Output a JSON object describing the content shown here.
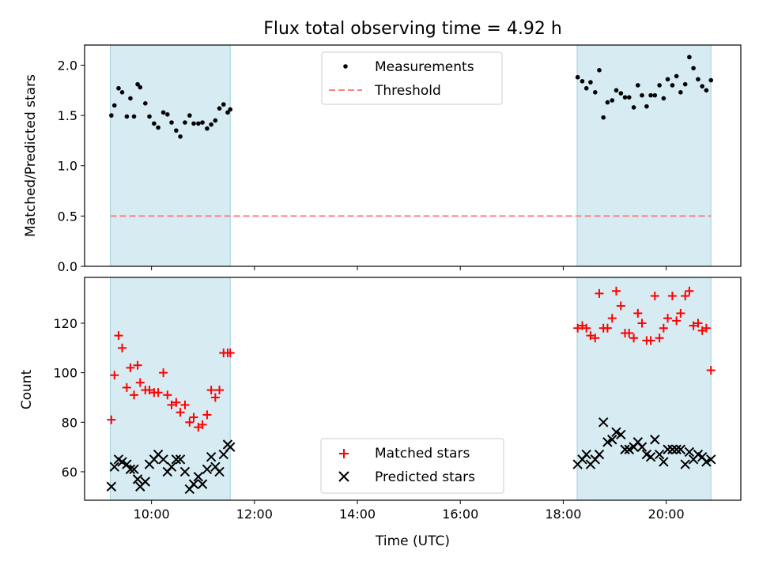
{
  "chart_data": [
    {
      "type": "scatter",
      "title": "Flux total observing time = 4.92 h",
      "xlabel": "",
      "ylabel": "Matched/Predicted stars",
      "xlim": [
        8.7,
        21.45
      ],
      "ylim": [
        0.0,
        2.2
      ],
      "yticks": [
        0.0,
        0.5,
        1.0,
        1.5,
        2.0
      ],
      "ytick_labels": [
        "0.0",
        "0.5",
        "1.0",
        "1.5",
        "2.0"
      ],
      "xticks": [
        10,
        12,
        14,
        16,
        18,
        20
      ],
      "shaded_intervals": [
        [
          9.2,
          11.53
        ],
        [
          18.27,
          20.87
        ]
      ],
      "threshold": 0.5,
      "series": [
        {
          "name": "Measurements",
          "color": "#000000",
          "x": [
            9.22,
            9.28,
            9.36,
            9.43,
            9.52,
            9.59,
            9.66,
            9.73,
            9.78,
            9.88,
            9.96,
            10.05,
            10.13,
            10.23,
            10.31,
            10.39,
            10.48,
            10.56,
            10.65,
            10.74,
            10.82,
            10.91,
            10.99,
            11.08,
            11.16,
            11.24,
            11.32,
            11.4,
            11.48,
            11.53,
            18.28,
            18.37,
            18.45,
            18.53,
            18.62,
            18.7,
            18.78,
            18.86,
            18.95,
            19.03,
            19.12,
            19.2,
            19.28,
            19.37,
            19.45,
            19.53,
            19.62,
            19.7,
            19.78,
            19.87,
            19.95,
            20.03,
            20.12,
            20.2,
            20.28,
            20.37,
            20.45,
            20.53,
            20.62,
            20.7,
            20.78,
            20.87
          ],
          "y": [
            1.5,
            1.6,
            1.77,
            1.73,
            1.49,
            1.67,
            1.49,
            1.81,
            1.78,
            1.62,
            1.49,
            1.42,
            1.38,
            1.53,
            1.51,
            1.43,
            1.35,
            1.29,
            1.43,
            1.5,
            1.42,
            1.42,
            1.43,
            1.37,
            1.41,
            1.45,
            1.57,
            1.61,
            1.53,
            1.56,
            1.88,
            1.84,
            1.77,
            1.83,
            1.73,
            1.95,
            1.48,
            1.63,
            1.65,
            1.75,
            1.72,
            1.68,
            1.68,
            1.58,
            1.8,
            1.7,
            1.59,
            1.7,
            1.7,
            1.8,
            1.67,
            1.86,
            1.8,
            1.89,
            1.73,
            1.81,
            2.08,
            1.97,
            1.86,
            1.79,
            1.75,
            1.85
          ]
        },
        {
          "name": "Threshold",
          "color": "#ff7f7f",
          "x": [
            9.2,
            20.87
          ],
          "y": [
            0.5,
            0.5
          ]
        }
      ],
      "legend": {
        "location": "upper center",
        "entries": [
          "Measurements",
          "Threshold"
        ]
      }
    },
    {
      "type": "scatter",
      "title": "",
      "xlabel": "Time (UTC)",
      "ylabel": "Count",
      "xlim": [
        8.7,
        21.45
      ],
      "ylim": [
        48.5,
        138.5
      ],
      "yticks": [
        60,
        80,
        100,
        120
      ],
      "ytick_labels": [
        "60",
        "80",
        "100",
        "120"
      ],
      "xticks": [
        10,
        12,
        14,
        16,
        18,
        20
      ],
      "xtick_labels": [
        "10:00",
        "12:00",
        "14:00",
        "16:00",
        "18:00",
        "20:00"
      ],
      "shaded_intervals": [
        [
          9.2,
          11.53
        ],
        [
          18.27,
          20.87
        ]
      ],
      "series": [
        {
          "name": "Matched stars",
          "color": "#ff0000",
          "marker": "+",
          "x": [
            9.22,
            9.28,
            9.36,
            9.43,
            9.52,
            9.59,
            9.66,
            9.73,
            9.78,
            9.88,
            9.96,
            10.05,
            10.13,
            10.23,
            10.31,
            10.39,
            10.48,
            10.56,
            10.65,
            10.74,
            10.82,
            10.91,
            10.99,
            11.08,
            11.16,
            11.24,
            11.32,
            11.4,
            11.48,
            11.53,
            18.28,
            18.37,
            18.45,
            18.53,
            18.62,
            18.7,
            18.78,
            18.86,
            18.95,
            19.03,
            19.12,
            19.2,
            19.28,
            19.37,
            19.45,
            19.53,
            19.62,
            19.7,
            19.78,
            19.87,
            19.95,
            20.03,
            20.12,
            20.2,
            20.28,
            20.37,
            20.45,
            20.53,
            20.62,
            20.7,
            20.78,
            20.87
          ],
          "y": [
            81,
            99,
            115,
            110,
            94,
            102,
            91,
            103,
            96,
            93,
            93,
            92,
            92,
            100,
            91,
            87,
            88,
            84,
            87,
            80,
            82,
            78,
            79,
            83,
            93,
            90,
            93,
            108,
            108,
            108,
            118,
            119,
            118,
            115,
            114,
            132,
            118,
            118,
            122,
            133,
            127,
            116,
            116,
            114,
            124,
            120,
            113,
            113,
            131,
            114,
            118,
            122,
            131,
            121,
            124,
            131,
            133,
            119,
            120,
            117,
            118,
            101
          ]
        },
        {
          "name": "Predicted stars",
          "color": "#000000",
          "marker": "x",
          "x": [
            9.22,
            9.28,
            9.36,
            9.43,
            9.52,
            9.59,
            9.66,
            9.73,
            9.78,
            9.88,
            9.96,
            10.05,
            10.13,
            10.23,
            10.31,
            10.39,
            10.48,
            10.56,
            10.65,
            10.74,
            10.82,
            10.91,
            10.99,
            11.08,
            11.16,
            11.24,
            11.32,
            11.4,
            11.48,
            11.53,
            18.28,
            18.37,
            18.45,
            18.53,
            18.62,
            18.7,
            18.78,
            18.86,
            18.95,
            19.03,
            19.12,
            19.2,
            19.28,
            19.37,
            19.45,
            19.53,
            19.62,
            19.7,
            19.78,
            19.87,
            19.95,
            20.03,
            20.12,
            20.2,
            20.28,
            20.37,
            20.45,
            20.53,
            20.62,
            20.7,
            20.78,
            20.87
          ],
          "y": [
            54,
            62,
            65,
            64,
            63,
            61,
            61,
            57,
            54,
            56,
            63,
            65,
            67,
            65,
            60,
            62,
            65,
            65,
            60,
            53,
            55,
            58,
            55,
            61,
            66,
            62,
            60,
            67,
            71,
            70,
            63,
            65,
            67,
            63,
            65,
            67,
            80,
            72,
            73,
            76,
            75,
            69,
            69,
            70,
            72,
            70,
            67,
            66,
            73,
            67,
            64,
            69,
            69,
            69,
            69,
            63,
            68,
            65,
            67,
            66,
            64,
            65
          ]
        }
      ],
      "legend": {
        "location": "lower center",
        "entries": [
          "Matched stars",
          "Predicted stars"
        ]
      }
    }
  ]
}
